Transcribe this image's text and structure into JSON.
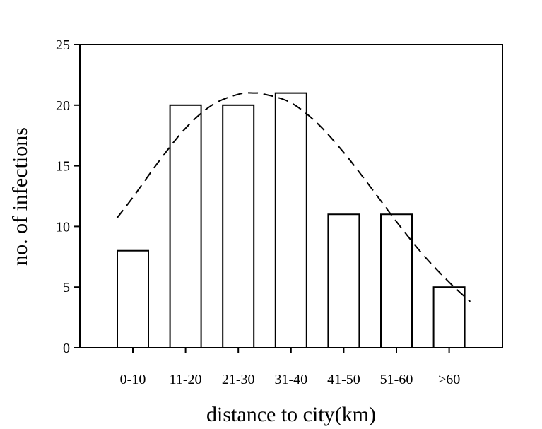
{
  "chart_data": {
    "type": "bar",
    "title": "",
    "xlabel": "distance to city(km)",
    "ylabel": "no. of infections",
    "categories": [
      "0-10",
      "11-20",
      "21-30",
      "31-40",
      "41-50",
      "51-60",
      ">60"
    ],
    "values": [
      8,
      20,
      20,
      21,
      11,
      11,
      5
    ],
    "ylim": [
      0,
      25
    ],
    "yticks": [
      0,
      5,
      10,
      15,
      20,
      25
    ],
    "grid": false,
    "legend": "none",
    "fit_curve": {
      "style": "dashed",
      "x": [
        -0.3,
        0.0,
        0.5,
        1.0,
        1.5,
        2.0,
        2.3,
        2.5,
        3.0,
        3.5,
        4.0,
        4.5,
        5.0,
        5.5,
        6.0,
        6.4
      ],
      "y": [
        10.7,
        12.4,
        15.4,
        18.1,
        20.0,
        20.9,
        21.0,
        20.9,
        20.2,
        18.5,
        16.1,
        13.3,
        10.4,
        7.7,
        5.4,
        3.8
      ]
    },
    "colors": {
      "bar_fill": "#ffffff",
      "bar_stroke": "#000000",
      "curve": "#000000",
      "axis": "#000000"
    }
  }
}
